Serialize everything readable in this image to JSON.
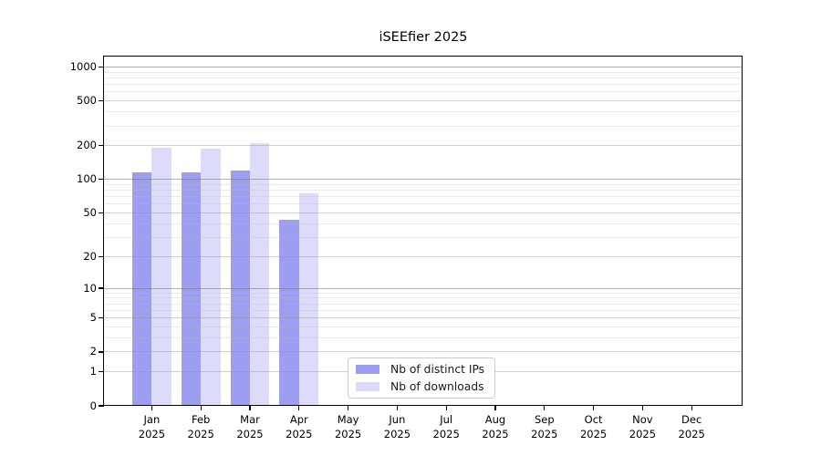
{
  "chart_data": {
    "type": "bar",
    "title": "iSEEfier 2025",
    "x_categories": [
      "Jan",
      "Feb",
      "Mar",
      "Apr",
      "May",
      "Jun",
      "Jul",
      "Aug",
      "Sep",
      "Oct",
      "Nov",
      "Dec"
    ],
    "x_year_label": "2025",
    "series": [
      {
        "name": "Nb of distinct IPs",
        "color": "#9d9df1",
        "values": [
          115,
          115,
          120,
          43,
          0,
          0,
          0,
          0,
          0,
          0,
          0,
          0
        ]
      },
      {
        "name": "Nb of downloads",
        "color": "#dcdcfa",
        "values": [
          192,
          187,
          211,
          75,
          0,
          0,
          0,
          0,
          0,
          0,
          0,
          0
        ]
      }
    ],
    "y_axis": {
      "scale": "log10(value+1)",
      "major_ticks": [
        0,
        1,
        2,
        5,
        10,
        20,
        50,
        100,
        200,
        500,
        1000
      ],
      "decade_emphasis_ticks": [
        10,
        100,
        1000
      ],
      "minor_ticks": [
        3,
        4,
        6,
        7,
        8,
        9,
        30,
        40,
        60,
        70,
        80,
        90,
        300,
        400,
        600,
        700,
        800,
        900
      ],
      "top_value": 1237,
      "ylim": [
        0,
        1237
      ]
    },
    "legend": {
      "position": "lower-center-inside",
      "entries": [
        "Nb of distinct IPs",
        "Nb of downloads"
      ]
    },
    "colors": {
      "bar_distinct_ips": "#9d9df1",
      "bar_downloads": "#dcdcfa",
      "grid_minor": "rgba(190,190,190,0.30)",
      "grid_major": "rgba(150,150,150,0.45)",
      "grid_decade": "rgba(115,115,115,0.55)",
      "spine": "#000000"
    },
    "grid": {
      "horizontal": true,
      "vertical": false,
      "drawn_above_bars": true
    }
  }
}
